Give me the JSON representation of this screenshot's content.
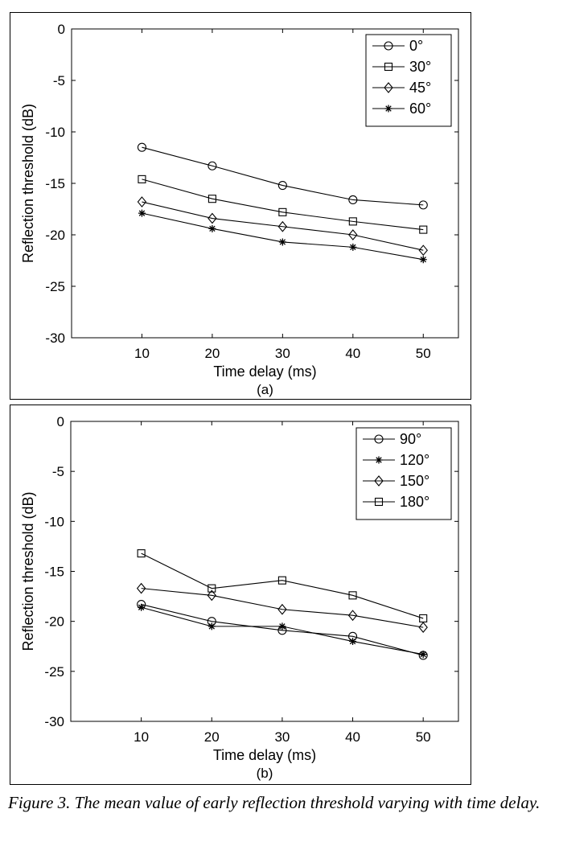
{
  "caption": "Figure 3. The mean value of early reflection threshold varying with time delay.",
  "chart_data": [
    {
      "type": "line",
      "title": "",
      "xlabel": "Time delay (ms)",
      "ylabel": "Reflection threshold (dB)",
      "sublabel": "(a)",
      "x": [
        10,
        20,
        30,
        40,
        50
      ],
      "xticks": [
        "10",
        "20",
        "30",
        "40",
        "50"
      ],
      "yticks": [
        "0",
        "-5",
        "-10",
        "-15",
        "-20",
        "-25",
        "-30"
      ],
      "xlim": [
        0,
        55
      ],
      "ylim": [
        -30,
        0
      ],
      "legend_position": "top-right",
      "series": [
        {
          "name": "0°",
          "marker": "circle",
          "values": [
            -11.5,
            -13.3,
            -15.2,
            -16.6,
            -17.1
          ]
        },
        {
          "name": "30°",
          "marker": "square",
          "values": [
            -14.6,
            -16.5,
            -17.8,
            -18.7,
            -19.5
          ]
        },
        {
          "name": "45°",
          "marker": "diamond",
          "values": [
            -16.8,
            -18.4,
            -19.2,
            -20.0,
            -21.5
          ]
        },
        {
          "name": "60°",
          "marker": "star",
          "values": [
            -17.9,
            -19.4,
            -20.7,
            -21.2,
            -22.4
          ]
        }
      ]
    },
    {
      "type": "line",
      "title": "",
      "xlabel": "Time delay (ms)",
      "ylabel": "Reflection threshold (dB)",
      "sublabel": "(b)",
      "x": [
        10,
        20,
        30,
        40,
        50
      ],
      "xticks": [
        "10",
        "20",
        "30",
        "40",
        "50"
      ],
      "yticks": [
        "0",
        "-5",
        "-10",
        "-15",
        "-20",
        "-25",
        "-30"
      ],
      "xlim": [
        0,
        55
      ],
      "ylim": [
        -30,
        0
      ],
      "legend_position": "top-right",
      "series": [
        {
          "name": "90°",
          "marker": "circle",
          "values": [
            -18.3,
            -20.0,
            -20.9,
            -21.5,
            -23.4
          ]
        },
        {
          "name": "120°",
          "marker": "star",
          "values": [
            -18.6,
            -20.5,
            -20.5,
            -22.0,
            -23.3
          ]
        },
        {
          "name": "150°",
          "marker": "diamond",
          "values": [
            -16.7,
            -17.4,
            -18.8,
            -19.4,
            -20.6
          ]
        },
        {
          "name": "180°",
          "marker": "square",
          "values": [
            -13.2,
            -16.7,
            -15.9,
            -17.4,
            -19.7
          ]
        }
      ]
    }
  ]
}
